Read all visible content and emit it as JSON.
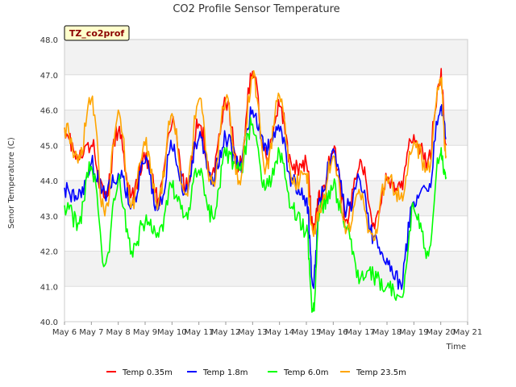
{
  "chart_data": {
    "type": "line",
    "title": "CO2 Profile Sensor Temperature",
    "xlabel": "Time",
    "ylabel": "Senor Temperature (C)",
    "badge": "TZ_co2prof",
    "ylim": [
      40.0,
      48.0
    ],
    "y_ticks": [
      "40.0",
      "41.0",
      "42.0",
      "43.0",
      "44.0",
      "45.0",
      "46.0",
      "47.0",
      "48.0"
    ],
    "xlim": [
      6,
      21
    ],
    "x_ticks": [
      "May 6",
      "May 7",
      "May 8",
      "May 9",
      "May 10",
      "May 11",
      "May 12",
      "May 13",
      "May 14",
      "May 15",
      "May 16",
      "May 17",
      "May 18",
      "May 19",
      "May 20",
      "May 21"
    ],
    "x_unit": "day of May",
    "grid": true,
    "legend_position": "bottom-center",
    "x": [
      6.0,
      6.5,
      7.0,
      7.5,
      8.0,
      8.5,
      9.0,
      9.5,
      10.0,
      10.5,
      11.0,
      11.5,
      12.0,
      12.5,
      13.0,
      13.5,
      14.0,
      14.5,
      15.0,
      15.25,
      15.5,
      16.0,
      16.5,
      17.0,
      17.5,
      18.0,
      18.5,
      19.0,
      19.5,
      20.0,
      20.2
    ],
    "series": [
      {
        "name": "Temp 0.35m",
        "color": "#ff0000",
        "values": [
          45.5,
          44.6,
          45.0,
          43.5,
          45.4,
          43.6,
          44.6,
          43.5,
          45.6,
          43.8,
          45.6,
          44.2,
          46.2,
          44.4,
          47.1,
          44.7,
          46.1,
          44.3,
          44.5,
          42.6,
          43.5,
          44.8,
          42.9,
          44.6,
          42.8,
          44.0,
          43.8,
          45.3,
          44.5,
          47.0,
          45.0
        ]
      },
      {
        "name": "Temp 1.8m",
        "color": "#0000ff",
        "values": [
          43.8,
          43.5,
          44.5,
          43.6,
          44.2,
          43.3,
          44.5,
          43.2,
          44.9,
          43.7,
          45.2,
          44.1,
          45.2,
          44.4,
          46.0,
          45.0,
          45.4,
          44.0,
          43.5,
          41.0,
          43.5,
          44.9,
          43.2,
          44.0,
          42.4,
          41.8,
          41.1,
          43.4,
          43.7,
          46.1,
          45.2
        ]
      },
      {
        "name": "Temp 6.0m",
        "color": "#00ff00",
        "values": [
          43.3,
          42.8,
          44.4,
          41.6,
          44.0,
          42.0,
          42.8,
          42.4,
          43.8,
          43.0,
          44.3,
          43.0,
          44.7,
          44.3,
          45.6,
          43.8,
          44.8,
          43.2,
          42.6,
          40.3,
          43.2,
          43.8,
          42.6,
          41.2,
          41.3,
          41.0,
          40.7,
          43.2,
          42.0,
          44.8,
          44.1
        ]
      },
      {
        "name": "Temp 23.5m",
        "color": "#ffa500",
        "values": [
          45.5,
          44.5,
          46.3,
          43.0,
          46.0,
          43.3,
          45.0,
          43.4,
          45.9,
          43.6,
          46.3,
          43.9,
          46.3,
          44.0,
          46.9,
          44.4,
          46.4,
          43.9,
          44.2,
          42.5,
          43.1,
          44.7,
          42.6,
          43.6,
          42.3,
          44.1,
          43.5,
          45.1,
          44.3,
          46.9,
          44.7
        ]
      }
    ]
  }
}
